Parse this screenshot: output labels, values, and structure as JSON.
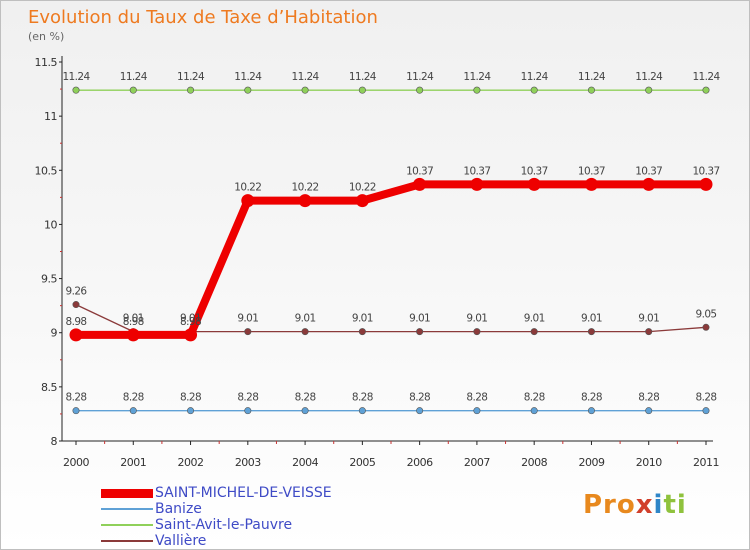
{
  "chart_data": {
    "type": "line",
    "title": "Evolution du Taux de Taxe d’Habitation",
    "subtitle": "(en %)",
    "xlabel": "",
    "ylabel": "",
    "x": [
      "2000",
      "2001",
      "2002",
      "2003",
      "2004",
      "2005",
      "2006",
      "2007",
      "2008",
      "2009",
      "2010",
      "2011"
    ],
    "ylim": [
      8,
      11.5
    ],
    "yticks": [
      "8",
      "8.5",
      "9",
      "9.5",
      "10",
      "10.5",
      "11",
      "11.5"
    ],
    "grid": false,
    "legend_position": "bottom-left",
    "series": [
      {
        "name": "SAINT-MICHEL-DE-VEISSE",
        "color": "#ee0000",
        "emphasis": true,
        "values": [
          8.98,
          8.98,
          8.98,
          10.22,
          10.22,
          10.22,
          10.37,
          10.37,
          10.37,
          10.37,
          10.37,
          10.37
        ],
        "labels": [
          "8.98",
          "8.98",
          "8.98",
          "10.22",
          "10.22",
          "10.22",
          "10.37",
          "10.37",
          "10.37",
          "10.37",
          "10.37",
          "10.37"
        ]
      },
      {
        "name": "Banize",
        "color": "#5fa1d6",
        "values": [
          8.28,
          8.28,
          8.28,
          8.28,
          8.28,
          8.28,
          8.28,
          8.28,
          8.28,
          8.28,
          8.28,
          8.28
        ],
        "labels": [
          "8.28",
          "8.28",
          "8.28",
          "8.28",
          "8.28",
          "8.28",
          "8.28",
          "8.28",
          "8.28",
          "8.28",
          "8.28",
          "8.28"
        ]
      },
      {
        "name": "Saint-Avit-le-Pauvre",
        "color": "#8fd05a",
        "values": [
          11.24,
          11.24,
          11.24,
          11.24,
          11.24,
          11.24,
          11.24,
          11.24,
          11.24,
          11.24,
          11.24,
          11.24
        ],
        "labels": [
          "11.24",
          "11.24",
          "11.24",
          "11.24",
          "11.24",
          "11.24",
          "11.24",
          "11.24",
          "11.24",
          "11.24",
          "11.24",
          "11.24"
        ]
      },
      {
        "name": "Vallière",
        "color": "#8b3a3a",
        "values": [
          9.26,
          9.01,
          9.01,
          9.01,
          9.01,
          9.01,
          9.01,
          9.01,
          9.01,
          9.01,
          9.01,
          9.05
        ],
        "labels": [
          "9.26",
          "9.01",
          "9.01",
          "9.01",
          "9.01",
          "9.01",
          "9.01",
          "9.01",
          "9.01",
          "9.01",
          "9.01",
          "9.05"
        ]
      }
    ]
  },
  "brand": {
    "part1": "Pro",
    "part2": "x",
    "part3": "i",
    "part4": "ti"
  }
}
